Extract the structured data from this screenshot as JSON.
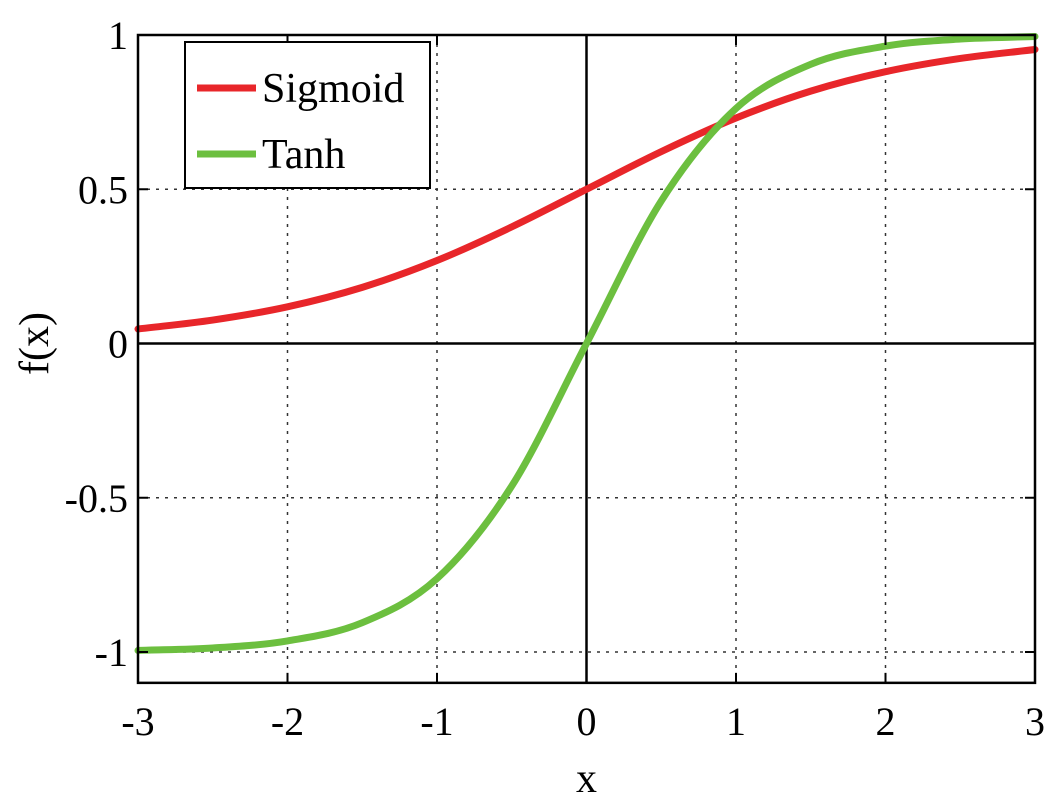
{
  "chart_data": {
    "type": "line",
    "xlabel": "x",
    "ylabel": "f(x)",
    "xlim": [
      -3,
      3
    ],
    "ylim": [
      -1.1,
      1.0
    ],
    "grid": true,
    "legend_position": "top-left",
    "x_ticks": [
      -3,
      -2,
      -1,
      0,
      1,
      2,
      3
    ],
    "x_tick_labels": [
      "-3",
      "-2",
      "-1",
      "0",
      "1",
      "2",
      "3"
    ],
    "y_ticks": [
      -1,
      -0.5,
      0,
      0.5,
      1
    ],
    "y_tick_labels": [
      "-1",
      "-0.5",
      "0",
      "0.5",
      "1"
    ],
    "x": [
      -3,
      -2.5,
      -2,
      -1.5,
      -1,
      -0.5,
      0,
      0.5,
      1,
      1.5,
      2,
      2.5,
      3
    ],
    "series": [
      {
        "name": "Sigmoid",
        "color": "#e8262a",
        "values": [
          0.047,
          0.076,
          0.119,
          0.182,
          0.269,
          0.378,
          0.5,
          0.622,
          0.731,
          0.818,
          0.881,
          0.924,
          0.953
        ]
      },
      {
        "name": "Tanh",
        "color": "#6cbf3f",
        "values": [
          -0.995,
          -0.987,
          -0.964,
          -0.905,
          -0.762,
          -0.462,
          0,
          0.462,
          0.762,
          0.905,
          0.964,
          0.987,
          0.995
        ]
      }
    ]
  }
}
